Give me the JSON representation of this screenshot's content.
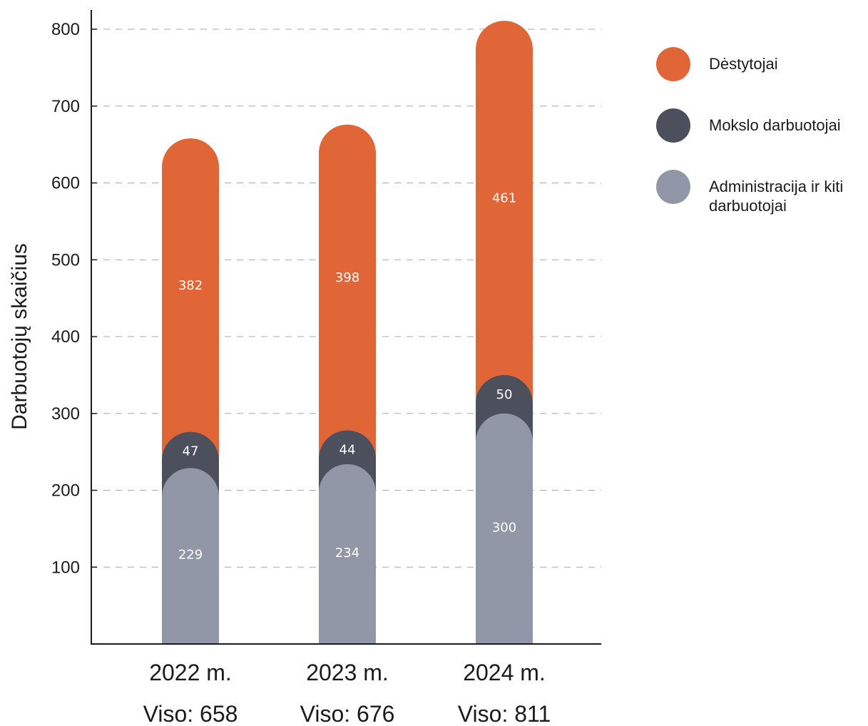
{
  "chart_data": {
    "type": "bar",
    "stacked": true,
    "title": "",
    "xlabel": "",
    "ylabel": "Darbuotojų skaičius",
    "ylim": [
      0,
      820
    ],
    "yticks": [
      100,
      200,
      300,
      400,
      500,
      600,
      700,
      800
    ],
    "grid": "horizontal dashed",
    "legend_position": "right",
    "categories": [
      "2022 m.",
      "2023 m.",
      "2024 m."
    ],
    "totals": [
      "Viso: 658",
      "Viso: 676",
      "Viso: 811"
    ],
    "series": [
      {
        "name": "Administracija ir kiti darbuotojai",
        "values": [
          229,
          234,
          300
        ],
        "color": "#9297a8"
      },
      {
        "name": "Mokslo darbuotojai",
        "values": [
          47,
          44,
          50
        ],
        "color": "#4c4f5c"
      },
      {
        "name": "Dėstytojai",
        "values": [
          382,
          398,
          461
        ],
        "color": "#e06537"
      }
    ],
    "legend_order": [
      "Dėstytojai",
      "Mokslo darbuotojai",
      "Administracija ir kiti darbuotojai"
    ]
  }
}
